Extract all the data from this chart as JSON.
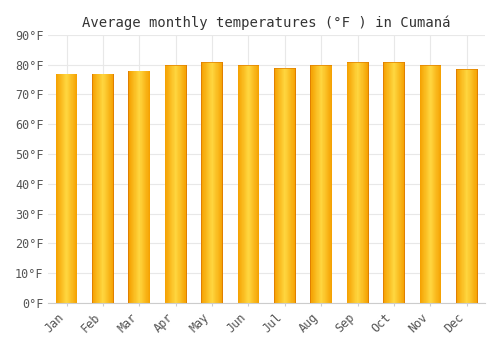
{
  "title": "Average monthly temperatures (°F ) in Cumaná",
  "months": [
    "Jan",
    "Feb",
    "Mar",
    "Apr",
    "May",
    "Jun",
    "Jul",
    "Aug",
    "Sep",
    "Oct",
    "Nov",
    "Dec"
  ],
  "values": [
    77.0,
    77.0,
    78.0,
    80.0,
    81.0,
    80.0,
    79.0,
    80.0,
    81.0,
    81.0,
    80.0,
    78.5
  ],
  "bar_color_left": "#F5A000",
  "bar_color_center": "#FFD740",
  "bar_color_right": "#F5A000",
  "background_color": "#FFFFFF",
  "grid_color": "#E8E8E8",
  "ylim": [
    0,
    90
  ],
  "yticks": [
    0,
    10,
    20,
    30,
    40,
    50,
    60,
    70,
    80,
    90
  ],
  "title_fontsize": 10,
  "tick_fontsize": 8.5,
  "bar_width": 0.6,
  "bar_gap_color": "#FFFFFF"
}
